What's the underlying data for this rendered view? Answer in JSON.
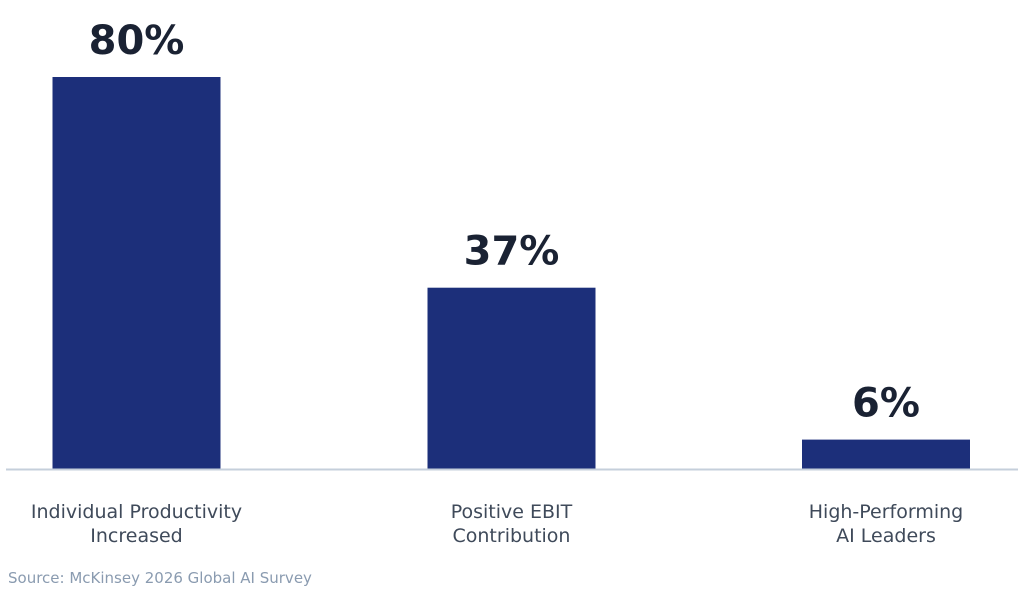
{
  "chart_data": {
    "type": "bar",
    "categories": [
      [
        "Individual Productivity",
        "Increased"
      ],
      [
        "Positive EBIT",
        "Contribution"
      ],
      [
        "High-Performing",
        "AI Leaders"
      ]
    ],
    "values": [
      80,
      37,
      6
    ],
    "value_labels": [
      "80%",
      "37%",
      "6%"
    ],
    "title": "",
    "xlabel": "",
    "ylabel": "",
    "ylim": [
      0,
      80
    ],
    "grid": false,
    "legend": "none"
  },
  "source": "Source: McKinsey 2026 Global AI Survey",
  "colors": {
    "bar": "#1c2f7a",
    "value_text": "#1a2233",
    "category_text": "#3f4a5a",
    "baseline": "#c5cfdb",
    "source_text": "#8a9bb0"
  }
}
